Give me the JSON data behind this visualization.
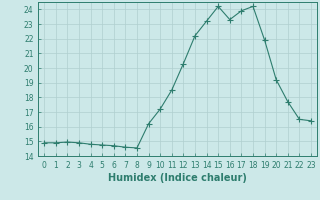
{
  "x": [
    0,
    1,
    2,
    3,
    4,
    5,
    6,
    7,
    8,
    9,
    10,
    11,
    12,
    13,
    14,
    15,
    16,
    17,
    18,
    19,
    20,
    21,
    22,
    23
  ],
  "y": [
    14.9,
    14.9,
    14.95,
    14.9,
    14.8,
    14.75,
    14.7,
    14.6,
    14.55,
    16.2,
    17.2,
    18.5,
    20.3,
    22.2,
    23.2,
    24.2,
    23.3,
    23.9,
    24.2,
    21.9,
    19.2,
    17.7,
    16.5,
    16.4
  ],
  "line_color": "#2e7d6e",
  "marker": "+",
  "marker_size": 4,
  "bg_color": "#cce8e8",
  "grid_color": "#b0cfcf",
  "xlabel": "Humidex (Indice chaleur)",
  "xlim": [
    -0.5,
    23.5
  ],
  "ylim": [
    14,
    24.5
  ],
  "yticks": [
    14,
    15,
    16,
    17,
    18,
    19,
    20,
    21,
    22,
    23,
    24
  ],
  "xticks": [
    0,
    1,
    2,
    3,
    4,
    5,
    6,
    7,
    8,
    9,
    10,
    11,
    12,
    13,
    14,
    15,
    16,
    17,
    18,
    19,
    20,
    21,
    22,
    23
  ],
  "tick_color": "#2e7d6e",
  "tick_fontsize": 5.5,
  "xlabel_fontsize": 7.0
}
